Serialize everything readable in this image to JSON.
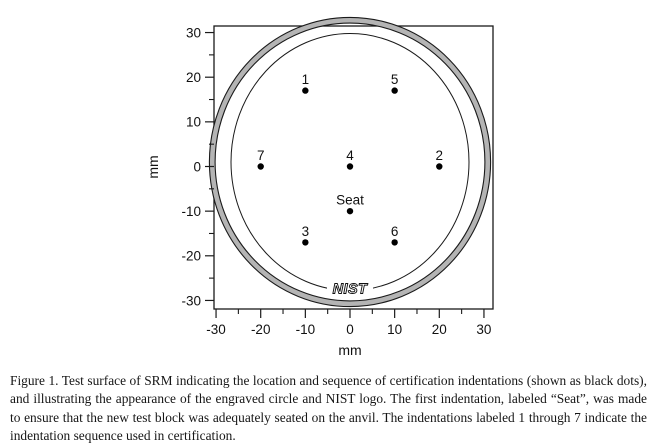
{
  "figure": {
    "caption": "Figure 1.  Test surface of SRM indicating the location and sequence of certification indentations (shown as black dots), and illustrating the appearance of the engraved circle and NIST logo.  The first indentation, labeled “Seat”, was made to ensure that the new test block was adequately seated on the anvil.  The indentations labeled 1 through 7 indicate the indentation sequence used in certification."
  },
  "chart_data": {
    "type": "scatter",
    "title": "",
    "xlabel": "mm",
    "ylabel": "mm",
    "xlim": [
      -32,
      32
    ],
    "ylim": [
      -32,
      32
    ],
    "x_ticks": [
      -30,
      -20,
      -10,
      0,
      10,
      20,
      30
    ],
    "y_ticks": [
      -30,
      -20,
      -10,
      0,
      10,
      20,
      30
    ],
    "minor_tick_step": 5,
    "grid": "off",
    "points": [
      {
        "label": "1",
        "x": -10,
        "y": 17
      },
      {
        "label": "2",
        "x": 20,
        "y": 0
      },
      {
        "label": "3",
        "x": -10,
        "y": -17
      },
      {
        "label": "4",
        "x": 0,
        "y": 0
      },
      {
        "label": "5",
        "x": 10,
        "y": 17
      },
      {
        "label": "6",
        "x": 10,
        "y": -17
      },
      {
        "label": "7",
        "x": -20,
        "y": 0
      },
      {
        "label": "Seat",
        "x": 0,
        "y": -10
      }
    ],
    "annotations": [
      {
        "label": "NIST",
        "x": 0,
        "y": -28,
        "meaning": "engraved NIST logo on block surface"
      }
    ],
    "outer_ring_radius_mm": 31.5,
    "engraved_circle_radius_mm": 29,
    "colors": {
      "ring_fill": "#b4b4b4",
      "line": "#1a1a1a",
      "dot": "#000000"
    }
  }
}
